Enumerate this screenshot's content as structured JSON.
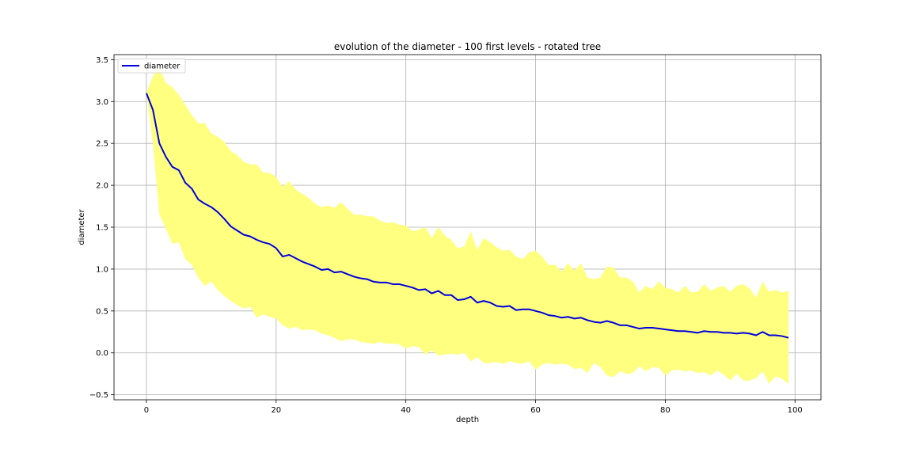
{
  "chart_data": {
    "type": "line",
    "title": "evolution of the diameter - 100 first levels - rotated tree",
    "xlabel": "depth",
    "ylabel": "diameter",
    "xlim": [
      -5,
      104
    ],
    "ylim": [
      -0.56,
      3.56
    ],
    "xticks": [
      0,
      20,
      40,
      60,
      80,
      100
    ],
    "yticks": [
      -0.5,
      0.0,
      0.5,
      1.0,
      1.5,
      2.0,
      2.5,
      3.0,
      3.5
    ],
    "xtick_labels": [
      "0",
      "20",
      "40",
      "60",
      "80",
      "100"
    ],
    "ytick_labels": [
      "−0.5",
      "0.0",
      "0.5",
      "1.0",
      "1.5",
      "2.0",
      "2.5",
      "3.0",
      "3.5"
    ],
    "grid": true,
    "legend": {
      "position": "upper left",
      "entries": [
        "diameter"
      ]
    },
    "colors": {
      "line": "#0000dd",
      "band": "#ffff80",
      "grid": "#b0b0b0"
    },
    "x": [
      0,
      1,
      2,
      3,
      4,
      5,
      6,
      7,
      8,
      9,
      10,
      11,
      12,
      13,
      14,
      15,
      16,
      17,
      18,
      19,
      20,
      21,
      22,
      23,
      24,
      25,
      26,
      27,
      28,
      29,
      30,
      31,
      32,
      33,
      34,
      35,
      36,
      37,
      38,
      39,
      40,
      41,
      42,
      43,
      44,
      45,
      46,
      47,
      48,
      49,
      50,
      51,
      52,
      53,
      54,
      55,
      56,
      57,
      58,
      59,
      60,
      61,
      62,
      63,
      64,
      65,
      66,
      67,
      68,
      69,
      70,
      71,
      72,
      73,
      74,
      75,
      76,
      77,
      78,
      79,
      80,
      81,
      82,
      83,
      84,
      85,
      86,
      87,
      88,
      89,
      90,
      91,
      92,
      93,
      94,
      95,
      96,
      97,
      98,
      99
    ],
    "series": [
      {
        "name": "diameter",
        "values": [
          3.1,
          2.9,
          2.5,
          2.34,
          2.22,
          2.18,
          2.03,
          1.96,
          1.83,
          1.78,
          1.74,
          1.68,
          1.6,
          1.51,
          1.46,
          1.41,
          1.39,
          1.35,
          1.32,
          1.3,
          1.25,
          1.15,
          1.17,
          1.13,
          1.09,
          1.06,
          1.03,
          0.99,
          1.0,
          0.96,
          0.97,
          0.94,
          0.91,
          0.89,
          0.88,
          0.85,
          0.84,
          0.84,
          0.82,
          0.82,
          0.8,
          0.78,
          0.75,
          0.76,
          0.71,
          0.74,
          0.69,
          0.69,
          0.63,
          0.64,
          0.67,
          0.6,
          0.62,
          0.6,
          0.56,
          0.55,
          0.56,
          0.51,
          0.52,
          0.52,
          0.5,
          0.48,
          0.45,
          0.44,
          0.42,
          0.43,
          0.41,
          0.42,
          0.39,
          0.37,
          0.36,
          0.38,
          0.36,
          0.33,
          0.33,
          0.31,
          0.29,
          0.3,
          0.3,
          0.29,
          0.28,
          0.27,
          0.26,
          0.26,
          0.25,
          0.24,
          0.26,
          0.25,
          0.25,
          0.24,
          0.24,
          0.23,
          0.24,
          0.23,
          0.21,
          0.25,
          0.21,
          0.21,
          0.2,
          0.18
        ]
      }
    ],
    "band": {
      "upper": [
        3.1,
        3.3,
        3.4,
        3.22,
        3.17,
        3.08,
        2.96,
        2.84,
        2.74,
        2.74,
        2.62,
        2.58,
        2.52,
        2.41,
        2.36,
        2.28,
        2.25,
        2.25,
        2.15,
        2.15,
        2.1,
        1.98,
        2.05,
        1.95,
        1.9,
        1.85,
        1.78,
        1.74,
        1.76,
        1.73,
        1.8,
        1.72,
        1.65,
        1.65,
        1.63,
        1.63,
        1.58,
        1.55,
        1.56,
        1.53,
        1.52,
        1.45,
        1.47,
        1.5,
        1.37,
        1.5,
        1.4,
        1.35,
        1.25,
        1.27,
        1.45,
        1.23,
        1.37,
        1.32,
        1.26,
        1.22,
        1.23,
        1.15,
        1.12,
        1.2,
        1.22,
        1.15,
        1.05,
        1.05,
        0.97,
        1.07,
        0.98,
        1.07,
        0.9,
        0.88,
        0.9,
        1.03,
        1.02,
        0.9,
        0.9,
        0.85,
        0.72,
        0.8,
        0.76,
        0.85,
        0.78,
        0.76,
        0.72,
        0.8,
        0.72,
        0.73,
        0.82,
        0.74,
        0.78,
        0.8,
        0.73,
        0.8,
        0.82,
        0.77,
        0.66,
        0.85,
        0.73,
        0.75,
        0.72,
        0.74
      ],
      "lower": [
        3.1,
        2.5,
        1.65,
        1.48,
        1.3,
        1.32,
        1.12,
        1.05,
        0.9,
        0.8,
        0.85,
        0.75,
        0.68,
        0.62,
        0.57,
        0.53,
        0.55,
        0.42,
        0.46,
        0.43,
        0.41,
        0.33,
        0.29,
        0.31,
        0.27,
        0.28,
        0.27,
        0.23,
        0.21,
        0.18,
        0.14,
        0.16,
        0.16,
        0.13,
        0.12,
        0.11,
        0.13,
        0.11,
        0.11,
        0.1,
        0.05,
        0.08,
        0.07,
        -0.02,
        0.03,
        -0.03,
        -0.02,
        -0.01,
        -0.02,
        0.0,
        -0.1,
        -0.05,
        -0.12,
        -0.12,
        -0.11,
        -0.13,
        -0.1,
        -0.12,
        -0.13,
        -0.1,
        -0.2,
        -0.14,
        -0.12,
        -0.14,
        -0.13,
        -0.14,
        -0.19,
        -0.18,
        -0.24,
        -0.12,
        -0.17,
        -0.27,
        -0.29,
        -0.22,
        -0.25,
        -0.24,
        -0.16,
        -0.22,
        -0.17,
        -0.18,
        -0.27,
        -0.21,
        -0.2,
        -0.22,
        -0.21,
        -0.24,
        -0.23,
        -0.27,
        -0.21,
        -0.26,
        -0.33,
        -0.25,
        -0.33,
        -0.33,
        -0.3,
        -0.22,
        -0.37,
        -0.28,
        -0.31,
        -0.37
      ]
    }
  }
}
